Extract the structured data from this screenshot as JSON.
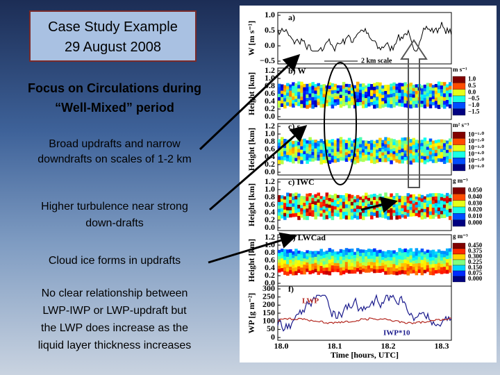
{
  "title_box": {
    "lines": [
      "Case Study Example",
      "29 August 2008"
    ]
  },
  "notes": [
    {
      "lines": [
        "Focus on Circulations during",
        "“Well-Mixed” period"
      ]
    },
    {
      "lines": [
        "Broad updrafts and narrow",
        "downdrafts on scales of 1-2 km"
      ]
    },
    {
      "lines": [
        "Higher turbulence near strong",
        "down-drafts"
      ]
    },
    {
      "lines": [
        "Cloud ice forms in updrafts"
      ]
    },
    {
      "lines": [
        "No clear relationship between",
        "LWP-IWP  or  LWP-updraft but",
        "the LWP does increase as the",
        "liquid layer thickness increases"
      ]
    }
  ],
  "figure": {
    "panels": [
      {
        "tag": "a)",
        "y_label": "W [m s⁻¹]",
        "y_ticks": [
          "1.0",
          "0.5",
          "0.0",
          "−0.5"
        ],
        "note": "2 km scale"
      },
      {
        "tag": "b) W",
        "y_label": "Height [km]",
        "y_ticks": [
          "1.2",
          "1.0",
          "0.8",
          "0.6",
          "0.4",
          "0.2",
          "0.0"
        ],
        "unit": "m s⁻¹",
        "scale": [
          "1.0",
          "0.5",
          "0.0",
          "−0.5",
          "−1.0",
          "−1.5"
        ]
      },
      {
        "tag": "c) ε",
        "y_label": "Height [km]",
        "y_ticks": [
          "1.2",
          "1.0",
          "0.8",
          "0.6",
          "0.4",
          "0.2",
          "0.0"
        ],
        "unit": "m² s⁻³",
        "scale": [
          "10⁻¹·⁰",
          "10⁻²·⁰",
          "10⁻³·⁰",
          "10⁻⁴·⁰",
          "10⁻⁵·⁰",
          "10⁻⁶·⁰"
        ]
      },
      {
        "tag": "c) IWC",
        "y_label": "Height [km]",
        "y_ticks": [
          "1.2",
          "1.0",
          "0.8",
          "0.6",
          "0.4",
          "0.2",
          "0.0"
        ],
        "unit": "g m⁻³",
        "scale": [
          "0.050",
          "0.040",
          "0.030",
          "0.020",
          "0.010",
          "0.000"
        ]
      },
      {
        "tag": "d) LWCad",
        "y_label": "Height [km]",
        "y_ticks": [
          "1.2",
          "1.0",
          "0.8",
          "0.6",
          "0.4",
          "0.2",
          "0.0"
        ],
        "unit": "g m⁻³",
        "scale": [
          "0.450",
          "0.375",
          "0.300",
          "0.225",
          "0.150",
          "0.075",
          "0.000"
        ]
      },
      {
        "tag": "f)",
        "y_label": "WP [g m⁻²]",
        "y_ticks": [
          "300",
          "250",
          "200",
          "150",
          "100",
          "50",
          "0"
        ],
        "lwp": "LWP",
        "iwp": "IWP*10"
      }
    ],
    "x_ticks": [
      "18.0",
      "18.1",
      "18.2",
      "18.3"
    ],
    "x_label": "Time [hours, UTC]"
  }
}
